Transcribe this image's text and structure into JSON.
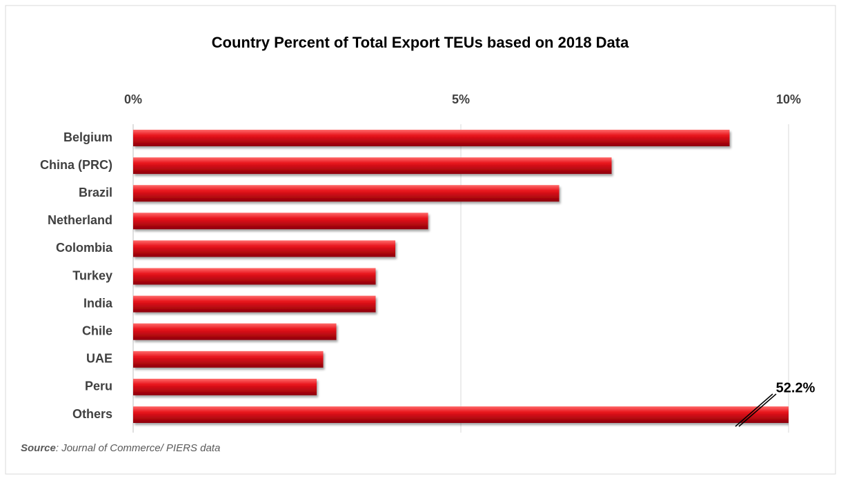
{
  "chart_data": {
    "type": "bar",
    "orientation": "horizontal",
    "title": "Country Percent of Total Export TEUs based on 2018 Data",
    "categories": [
      "Belgium",
      "China (PRC)",
      "Brazil",
      "Netherland",
      "Colombia",
      "Turkey",
      "India",
      "Chile",
      "UAE",
      "Peru",
      "Others"
    ],
    "values": [
      9.1,
      7.3,
      6.5,
      4.5,
      4.0,
      3.7,
      3.7,
      3.1,
      2.9,
      2.8,
      52.2
    ],
    "value_labels": [
      null,
      null,
      null,
      null,
      null,
      null,
      null,
      null,
      null,
      null,
      "52.2%"
    ],
    "color": "#d0101a",
    "xlim": [
      0,
      10
    ],
    "xticks": [
      {
        "value": 0,
        "label": "0%"
      },
      {
        "value": 5,
        "label": "5%"
      },
      {
        "value": 10,
        "label": "10%"
      }
    ],
    "grid": true,
    "source_label": "Source",
    "source_text": ": Journal of Commerce/ PIERS data"
  }
}
